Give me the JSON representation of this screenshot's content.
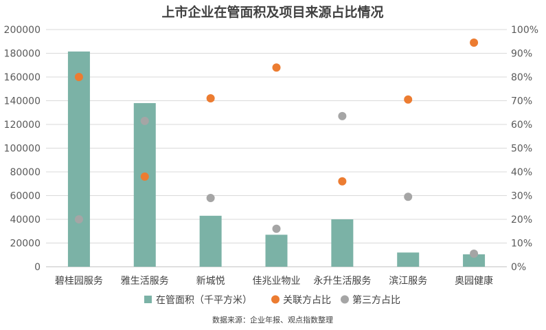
{
  "chart_data": {
    "type": "bar",
    "title": "上市企业在管面积及项目来源占比情况",
    "categories": [
      "碧桂园服务",
      "雅生活服务",
      "新城悦",
      "佳兆业物业",
      "永升生活服务",
      "滨江服务",
      "奥园健康"
    ],
    "series": [
      {
        "name": "在管面积（千平方米）",
        "type": "bar",
        "axis": "left",
        "color": "#7bb2a6",
        "values": [
          181500,
          138000,
          43000,
          27000,
          40000,
          12000,
          10500
        ]
      },
      {
        "name": "关联方占比",
        "type": "scatter",
        "axis": "right",
        "color": "#ec7c31",
        "values": [
          0.8,
          0.38,
          0.71,
          0.84,
          0.36,
          0.705,
          0.945
        ]
      },
      {
        "name": "第三方占比",
        "type": "scatter",
        "axis": "right",
        "color": "#a5a5a5",
        "values": [
          0.2,
          0.615,
          0.29,
          0.16,
          0.635,
          0.295,
          0.055
        ]
      }
    ],
    "y_left": {
      "min": 0,
      "max": 200000,
      "ticks": [
        "0",
        "20000",
        "40000",
        "60000",
        "80000",
        "100000",
        "120000",
        "140000",
        "160000",
        "180000",
        "200000"
      ]
    },
    "y_right": {
      "min": 0,
      "max": 1,
      "ticks": [
        "0%",
        "10%",
        "20%",
        "30%",
        "40%",
        "50%",
        "60%",
        "70%",
        "80%",
        "90%",
        "100%"
      ]
    },
    "grid": true,
    "legend": "bottom",
    "source": "数据来源：企业年报、观点指数整理"
  }
}
